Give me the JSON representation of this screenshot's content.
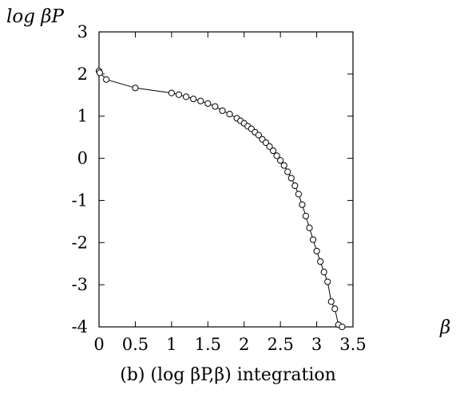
{
  "chart_data": {
    "type": "line",
    "ylabel": "log βP",
    "xlabel": "β",
    "caption": "(b) (log βP,β) integration",
    "xlim": [
      0,
      3.5
    ],
    "ylim": [
      -4,
      3
    ],
    "xticks": [
      "0",
      "0.5",
      "1",
      "1.5",
      "2",
      "2.5",
      "3",
      "3.5"
    ],
    "yticks": [
      "3",
      "2",
      "1",
      "0",
      "-1",
      "-2",
      "-3",
      "-4"
    ],
    "marker": "open-circle",
    "grid": false,
    "legend": "none",
    "series": [
      {
        "x": [
          0.0,
          0.01,
          0.1,
          0.5,
          1.0,
          1.1,
          1.2,
          1.3,
          1.4,
          1.5,
          1.6,
          1.7,
          1.8,
          1.9,
          1.95,
          2.0,
          2.05,
          2.1,
          2.15,
          2.2,
          2.25,
          2.3,
          2.35,
          2.4,
          2.45,
          2.5,
          2.55,
          2.6,
          2.65,
          2.7,
          2.75,
          2.8,
          2.85,
          2.9,
          2.95,
          3.0,
          3.05,
          3.1,
          3.15,
          3.2,
          3.25,
          3.3,
          3.35
        ],
        "y": [
          2.07,
          2.03,
          1.87,
          1.67,
          1.55,
          1.51,
          1.46,
          1.41,
          1.36,
          1.3,
          1.23,
          1.13,
          1.05,
          0.95,
          0.89,
          0.83,
          0.76,
          0.7,
          0.62,
          0.55,
          0.45,
          0.37,
          0.28,
          0.18,
          0.06,
          -0.05,
          -0.17,
          -0.32,
          -0.47,
          -0.65,
          -0.85,
          -1.1,
          -1.37,
          -1.65,
          -1.93,
          -2.2,
          -2.45,
          -2.7,
          -2.93,
          -3.4,
          -3.57,
          -3.95,
          -4.0
        ]
      }
    ]
  }
}
